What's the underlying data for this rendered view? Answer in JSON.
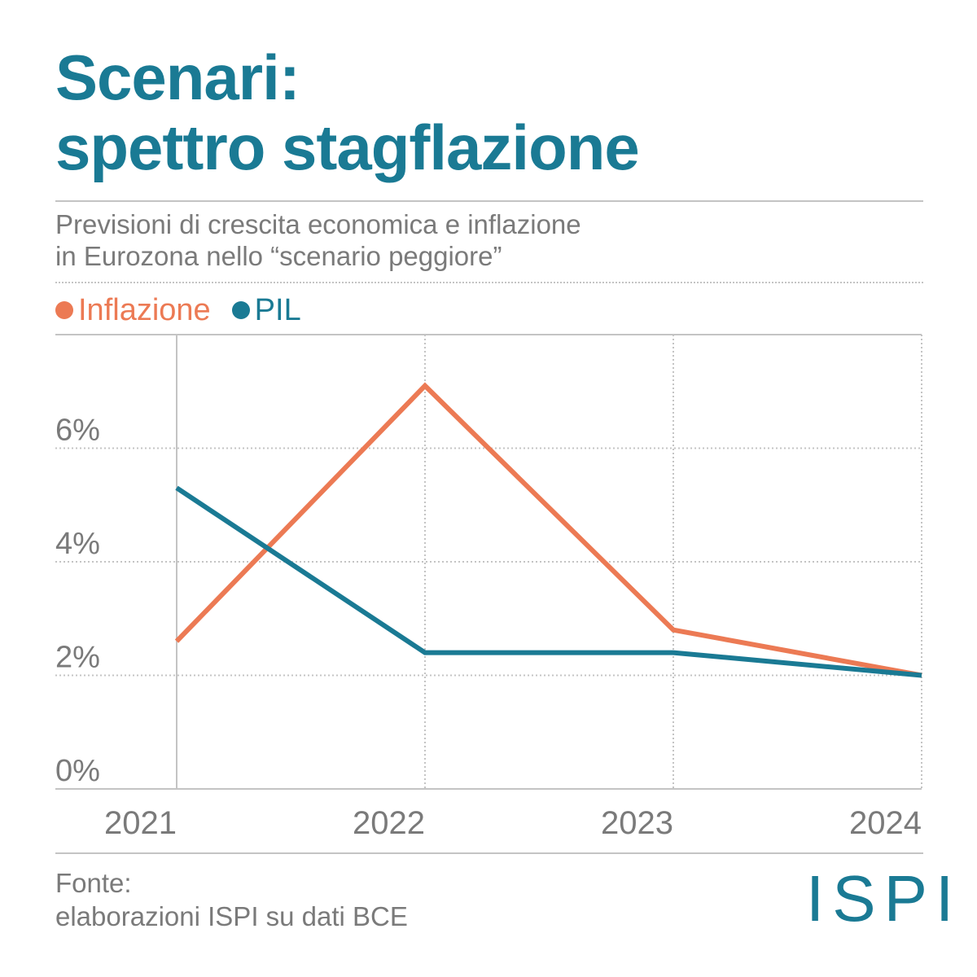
{
  "title": {
    "line1": "Scenari:",
    "line2": "spettro stagflazione"
  },
  "subtitle": {
    "line1": "Previsioni di crescita economica e inflazione",
    "line2": "in Eurozona nello “scenario peggiore”"
  },
  "colors": {
    "inflazione": "#ec7a54",
    "pil": "#1a7a94",
    "title": "#1a7a94",
    "text": "#7a7a7a",
    "grid": "#c4c4c4"
  },
  "chart_data": {
    "type": "line",
    "categories": [
      "2021",
      "2022",
      "2023",
      "2024"
    ],
    "ylim": [
      0,
      8
    ],
    "yticks": [
      0,
      2,
      4,
      6
    ],
    "ytick_labels": [
      "0%",
      "2%",
      "4%",
      "6%"
    ],
    "grid": true,
    "legend_placement": "top-left",
    "series": [
      {
        "name": "Inflazione",
        "color": "#ec7a54",
        "values": [
          2.6,
          7.1,
          2.8,
          2.0
        ]
      },
      {
        "name": "PIL",
        "color": "#1a7a94",
        "values": [
          5.3,
          2.4,
          2.4,
          2.0
        ]
      }
    ]
  },
  "source": {
    "line1": "Fonte:",
    "line2": "elaborazioni ISPI su dati BCE"
  },
  "logo": "ISPI"
}
